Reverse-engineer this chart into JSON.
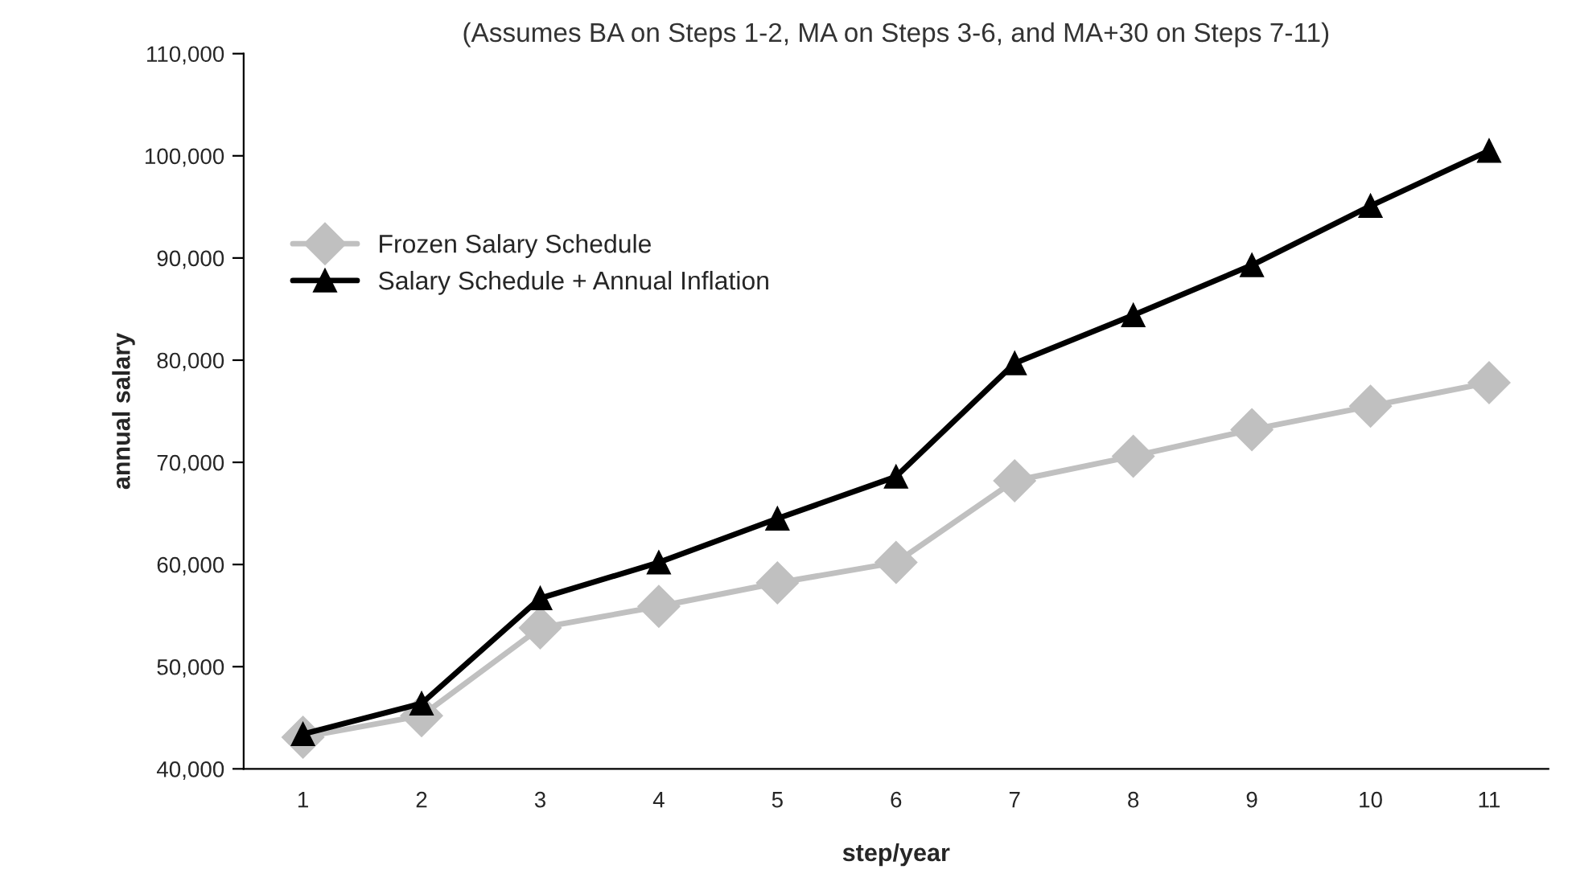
{
  "chart_data": {
    "type": "line",
    "subtitle": "(Assumes BA on Steps 1-2, MA on Steps 3-6, and MA+30 on Steps 7-11)",
    "xlabel": "step/year",
    "ylabel": "annual salary",
    "categories": [
      "1",
      "2",
      "3",
      "4",
      "5",
      "6",
      "7",
      "8",
      "9",
      "10",
      "11"
    ],
    "series": [
      {
        "name": "Frozen Salary Schedule",
        "color": "#c0c0c0",
        "marker": "diamond",
        "values": [
          43100,
          45200,
          53800,
          55900,
          58200,
          60200,
          68200,
          70600,
          73200,
          75500,
          77800
        ]
      },
      {
        "name": "Salary Schedule + Annual Inflation",
        "color": "#000000",
        "marker": "triangle",
        "values": [
          43400,
          46400,
          56700,
          60200,
          64500,
          68600,
          79700,
          84400,
          89300,
          95100,
          100500
        ]
      }
    ],
    "ylim": [
      40000,
      110000
    ],
    "yticks": [
      {
        "value": 40000,
        "label": "40,000"
      },
      {
        "value": 50000,
        "label": "50,000"
      },
      {
        "value": 60000,
        "label": "60,000"
      },
      {
        "value": 70000,
        "label": "70,000"
      },
      {
        "value": 80000,
        "label": "80,000"
      },
      {
        "value": 90000,
        "label": "90,000"
      },
      {
        "value": 100000,
        "label": "100,000"
      },
      {
        "value": 110000,
        "label": "110,000"
      }
    ],
    "grid": false,
    "legend": "top left",
    "line_style": "solid"
  }
}
